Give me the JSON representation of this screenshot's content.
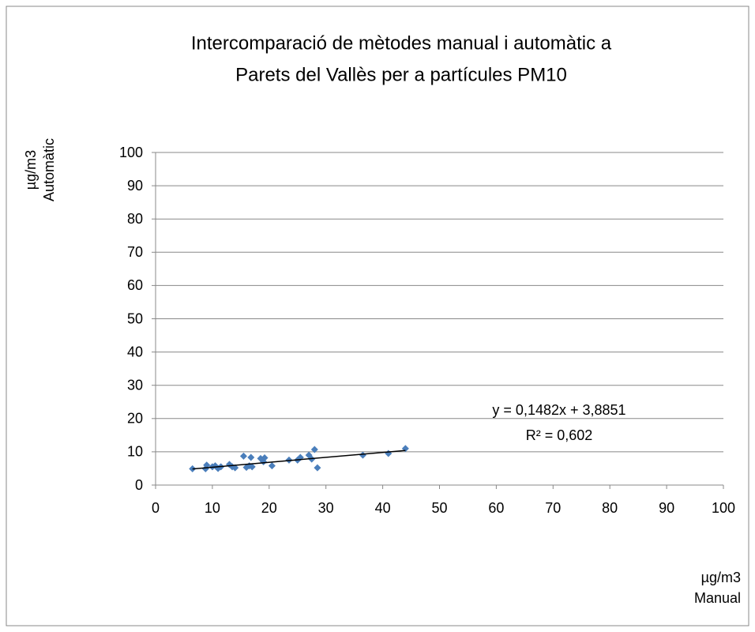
{
  "chart_data": {
    "type": "scatter",
    "title": [
      "Intercomparació de mètodes manual i automàtic a",
      "Parets del Vallès per a partícules PM10"
    ],
    "x_label": [
      "µg/m3",
      "Manual"
    ],
    "y_label": [
      "µg/m3",
      "Automàtic"
    ],
    "series": [
      {
        "name": "PM10",
        "color": "#4a7ebb",
        "x": [
          6.5,
          8.8,
          9,
          10,
          10.5,
          11,
          11.5,
          13,
          13.5,
          14,
          15.5,
          16,
          16.5,
          16.8,
          17,
          18.5,
          19,
          19.2,
          20.5,
          23.5,
          25,
          25.5,
          27,
          27.5,
          28,
          28.5,
          36.5,
          41,
          44
        ],
        "values": [
          4.9,
          4.9,
          6,
          5.5,
          5.8,
          5,
          5.5,
          6.2,
          5.5,
          5.2,
          8.7,
          5.3,
          5.8,
          8.3,
          5.5,
          8,
          7,
          8.2,
          5.8,
          7.5,
          7.5,
          8.3,
          9,
          7.8,
          10.7,
          5.2,
          9,
          9.5,
          11
        ]
      }
    ],
    "trendline": {
      "label": "y = 0,1482x + 3,8851",
      "r2_label": "R² = 0,602",
      "slope": 0.1482,
      "intercept": 3.8851,
      "r2": 0.602,
      "color": "#000000"
    },
    "xlim": [
      0,
      100
    ],
    "xticks": [
      0,
      10,
      20,
      30,
      40,
      50,
      60,
      70,
      80,
      90,
      100
    ],
    "ylim": [
      0,
      100
    ],
    "yticks": [
      0,
      10,
      20,
      30,
      40,
      50,
      60,
      70,
      80,
      90,
      100
    ],
    "grid": true
  }
}
